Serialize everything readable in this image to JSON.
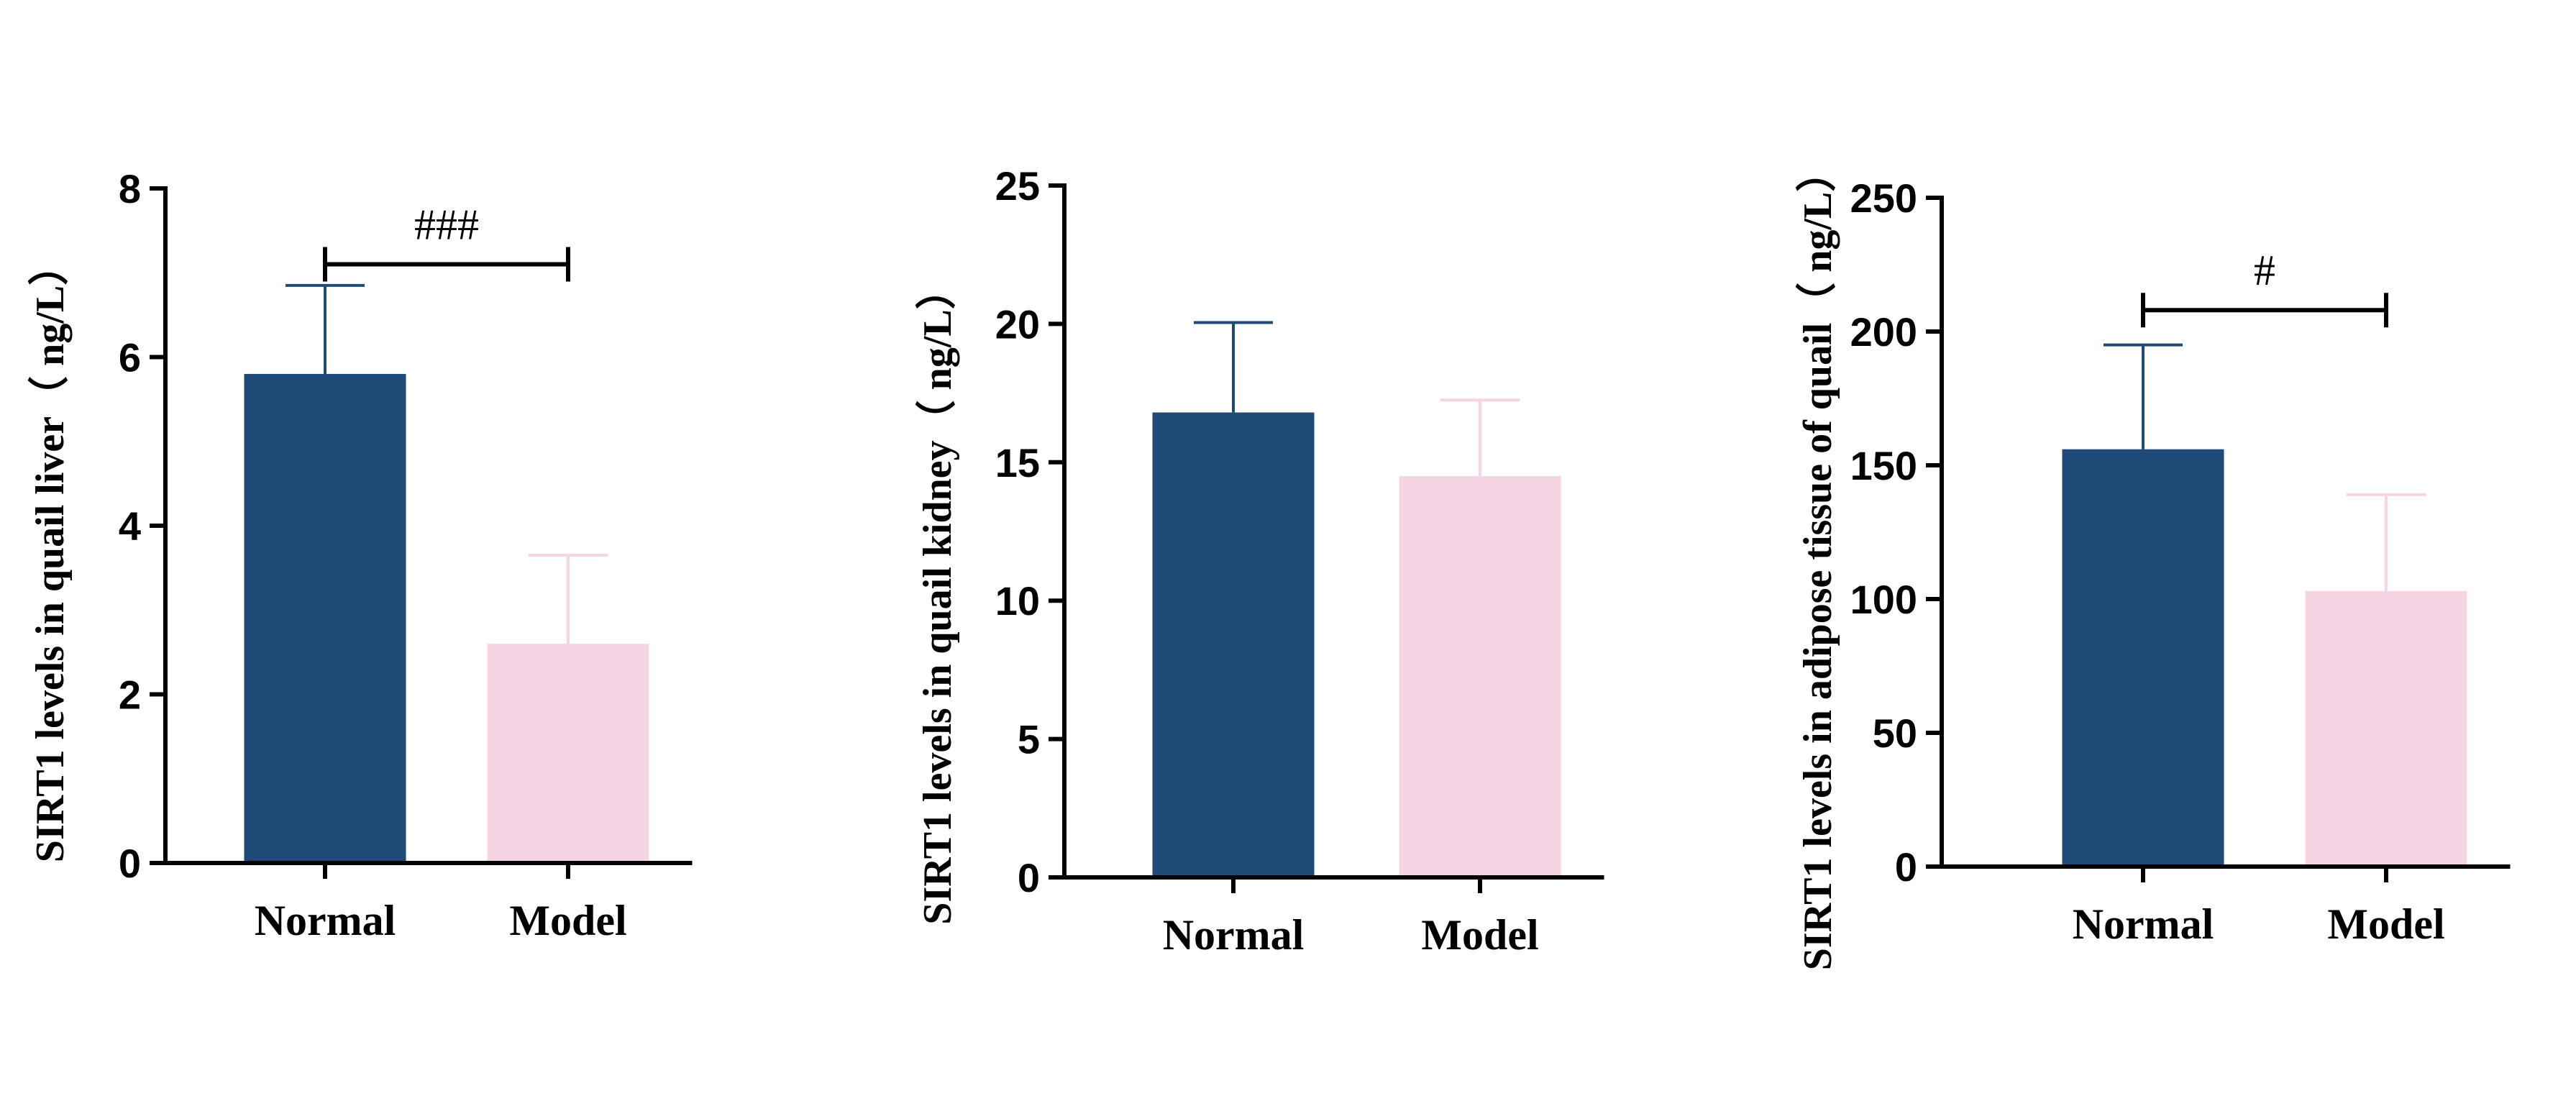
{
  "chart_data": [
    {
      "type": "bar",
      "title": "",
      "xlabel": "",
      "ylabel": "SIRT1 levels in quail liver（ ng/L）",
      "categories": [
        "Normal",
        "Model"
      ],
      "values": [
        5.8,
        2.6
      ],
      "errors": [
        1.05,
        1.05
      ],
      "ylim": [
        0,
        8
      ],
      "yticks": [
        "0",
        "2",
        "4",
        "6",
        "8"
      ],
      "significance": {
        "label": "###",
        "from": "Normal",
        "to": "Model",
        "y": 7.1
      }
    },
    {
      "type": "bar",
      "title": "",
      "xlabel": "",
      "ylabel": "SIRT1 levels in quail kidney（ ng/L）",
      "categories": [
        "Normal",
        "Model"
      ],
      "values": [
        16.8,
        14.5
      ],
      "errors": [
        3.25,
        2.75
      ],
      "ylim": [
        0,
        25
      ],
      "yticks": [
        "0",
        "5",
        "10",
        "15",
        "20",
        "25"
      ],
      "significance": null
    },
    {
      "type": "bar",
      "title": "",
      "xlabel": "",
      "ylabel": "SIRT1 levels in adipose tissue of quail（ ng/L）",
      "categories": [
        "Normal",
        "Model"
      ],
      "values": [
        156,
        103
      ],
      "errors": [
        39,
        36
      ],
      "ylim": [
        0,
        250
      ],
      "yticks": [
        "0",
        "50",
        "100",
        "150",
        "200",
        "250"
      ],
      "significance": {
        "label": "#",
        "from": "Normal",
        "to": "Model",
        "y": 208
      }
    }
  ],
  "colors": {
    "normal": "#1f4a77",
    "model": "#f7d4e4",
    "normal_error": "#1f4a77",
    "model_error": "#f7d4e4",
    "axis": "#000000"
  }
}
